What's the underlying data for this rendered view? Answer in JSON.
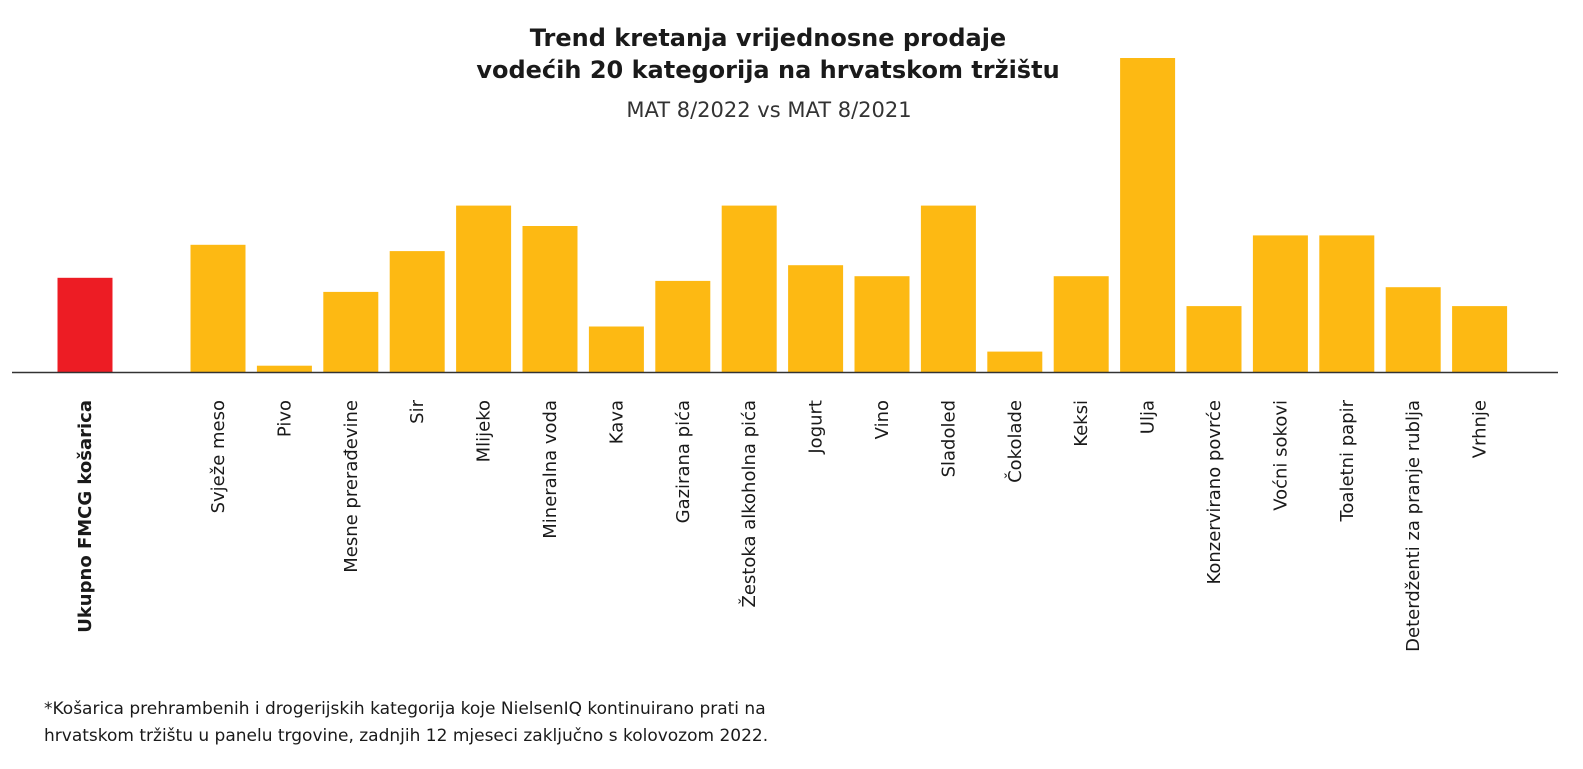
{
  "chart_data": {
    "type": "bar",
    "title_lines": [
      "Trend kretanja vrijednosne prodaje",
      "vodećih 20 kategorija na hrvatskom tržištu"
    ],
    "subtitle": "MAT 8/2022 vs MAT 8/2021",
    "xlabel": "",
    "ylabel": "",
    "ylim": [
      0,
      100
    ],
    "grid": false,
    "axis_values_shown": false,
    "total": {
      "category": "Ukupno FMCG košarica",
      "value": 30,
      "color": "#ED1C24"
    },
    "categories": [
      "Svježe meso",
      "Pivo",
      "Mesne prerađevine",
      "Sir",
      "Mlijeko",
      "Mineralna voda",
      "Kava",
      "Gazirana pića",
      "Žestoka alkoholna pića",
      "Jogurt",
      "Vino",
      "Sladoled",
      "Čokolade",
      "Keksi",
      "Ulja",
      "Konzervirano povrće",
      "Voćni sokovi",
      "Toaletni papir",
      "Deterdženti za pranje rublja",
      "Vrhnje"
    ],
    "values": [
      40.5,
      2,
      25.5,
      38.5,
      53,
      46.5,
      14.5,
      29,
      53,
      34,
      30.5,
      53,
      6.5,
      30.5,
      100,
      21,
      43.5,
      43.5,
      27,
      21
    ],
    "colors": {
      "bar": "#FDB913",
      "total_bar": "#ED1C24",
      "baseline": "#333333"
    }
  },
  "footnote": [
    "*Košarica prehrambenih i drogerijskih kategorija koje NielsenIQ kontinuirano prati na",
    "hrvatskom tržištu u panelu trgovine, zadnjih 12 mjeseci zaključno s kolovozom 2022."
  ]
}
